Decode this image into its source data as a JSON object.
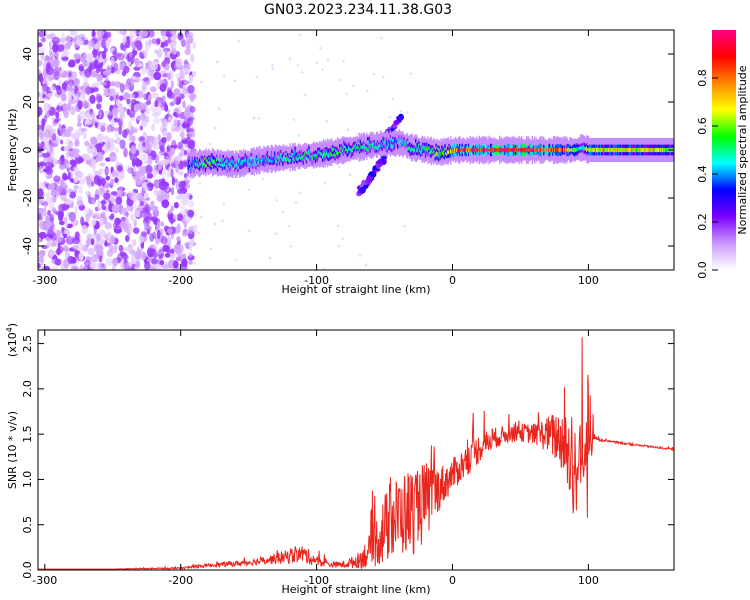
{
  "figure": {
    "title": "GN03.2023.234.11.38.G03"
  },
  "chart_data": [
    {
      "type": "heatmap",
      "xlabel": "Height of straight line (km)",
      "ylabel": "Frequency (Hz)",
      "xlim": [
        -305,
        163
      ],
      "ylim": [
        -50,
        50
      ],
      "x_ticks": [
        "-300",
        "-200",
        "-100",
        "0",
        "100"
      ],
      "y_ticks": [
        "-40",
        "-20",
        "0",
        "20",
        "40"
      ],
      "colorbar": {
        "label": "Normalized spectral amplitude",
        "range": [
          0,
          1
        ],
        "ticks": [
          "0.0",
          "0.2",
          "0.4",
          "0.6",
          "0.8"
        ],
        "colors": [
          "#ffffff",
          "#cc99ff",
          "#7a00ff",
          "#0000ff",
          "#00ffff",
          "#00ff00",
          "#ffff00",
          "#ff8800",
          "#ff0000",
          "#ff0088"
        ]
      },
      "features": {
        "noise_region": {
          "x": [
            -305,
            -190
          ],
          "freq": [
            -50,
            50
          ],
          "amplitude": 0.05
        },
        "main_trace": {
          "x": [
            -195,
            -180,
            -160,
            -140,
            -120,
            -100,
            -80,
            -60,
            -40,
            -30,
            -20,
            -10,
            0,
            20,
            40,
            60,
            80,
            90,
            95,
            100,
            130,
            163
          ],
          "freq": [
            -6,
            -5,
            -6,
            -4,
            -3,
            -2,
            0,
            2,
            3,
            1,
            0,
            -1,
            0,
            0,
            0,
            0,
            0,
            0,
            1,
            0,
            0,
            0
          ],
          "amplitude": [
            0.35,
            0.6,
            0.45,
            0.45,
            0.5,
            0.5,
            0.55,
            0.5,
            0.4,
            0.55,
            0.55,
            0.6,
            0.85,
            0.95,
            1.0,
            0.95,
            0.85,
            0.6,
            0.45,
            0.75,
            0.7,
            0.6
          ]
        },
        "upper_branch": {
          "x": [
            -70,
            -55,
            -45,
            -40,
            -35
          ],
          "freq": [
            0,
            4,
            8,
            12,
            15
          ],
          "amplitude": 0.25
        },
        "lower_branch": {
          "x": [
            -70,
            -65,
            -60,
            -55,
            -50
          ],
          "freq": [
            -18,
            -15,
            -11,
            -7,
            -3
          ],
          "amplitude": 0.25
        }
      }
    },
    {
      "type": "line",
      "xlabel": "Height of straight line (km)",
      "ylabel": "SNR (10 * v/v)",
      "y_scale_label": "(x10",
      "y_scale_exponent": "4",
      "xlim": [
        -305,
        163
      ],
      "ylim": [
        0,
        2.65
      ],
      "x_ticks": [
        "-300",
        "-200",
        "-100",
        "0",
        "100"
      ],
      "y_ticks": [
        "0.0",
        "0.5",
        "1.0",
        "1.5",
        "2.0",
        "2.5"
      ],
      "series": [
        {
          "color": "#e8261e",
          "x": [
            -305,
            -250,
            -200,
            -180,
            -160,
            -140,
            -120,
            -110,
            -100,
            -90,
            -80,
            -70,
            -60,
            -50,
            -40,
            -30,
            -20,
            -10,
            0,
            10,
            20,
            30,
            40,
            50,
            60,
            70,
            80,
            90,
            95,
            100,
            105,
            110,
            130,
            163
          ],
          "y": [
            0.01,
            0.01,
            0.02,
            0.05,
            0.07,
            0.1,
            0.15,
            0.18,
            0.1,
            0.06,
            0.06,
            0.1,
            0.22,
            0.45,
            0.6,
            0.65,
            0.75,
            0.9,
            1.05,
            1.2,
            1.35,
            1.45,
            1.5,
            1.52,
            1.5,
            1.5,
            1.45,
            1.1,
            1.3,
            1.4,
            1.45,
            1.43,
            1.39,
            1.33
          ],
          "noise": [
            0.0,
            0.0,
            0.01,
            0.02,
            0.03,
            0.04,
            0.08,
            0.1,
            0.06,
            0.03,
            0.04,
            0.08,
            0.2,
            0.4,
            0.45,
            0.5,
            0.45,
            0.25,
            0.18,
            0.18,
            0.16,
            0.12,
            0.1,
            0.1,
            0.12,
            0.2,
            0.35,
            0.6,
            0.55,
            0.4,
            0.02,
            0.01,
            0.01,
            0.01
          ]
        }
      ]
    }
  ]
}
